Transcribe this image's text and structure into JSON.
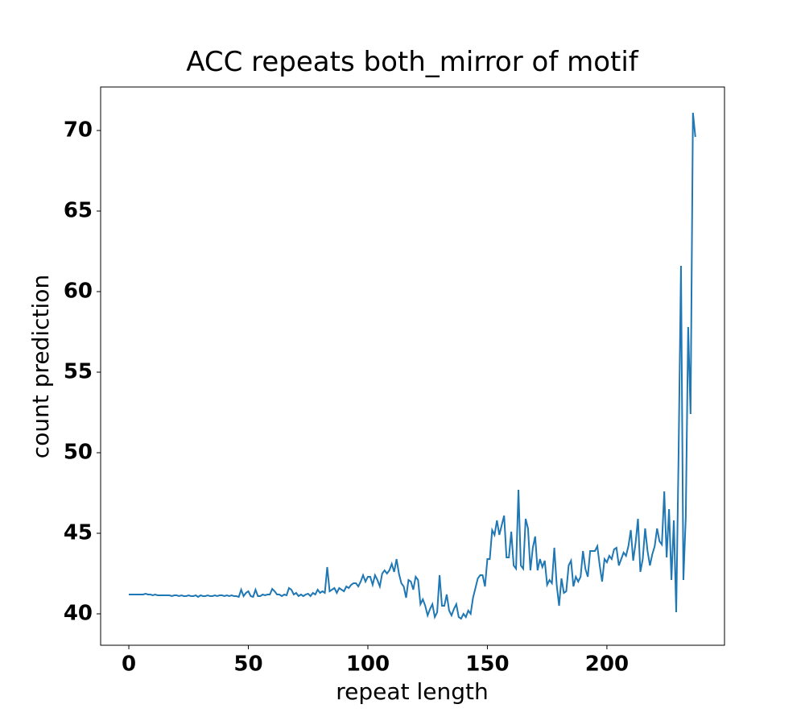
{
  "chart_data": {
    "type": "line",
    "title": "ACC repeats both_mirror of motif",
    "xlabel": "repeat length",
    "ylabel": "count prediction",
    "xlim": [
      -11.8,
      249.2
    ],
    "ylim": [
      38.05,
      72.7
    ],
    "xticks": [
      0,
      50,
      100,
      150,
      200
    ],
    "yticks": [
      40,
      45,
      50,
      55,
      60,
      65,
      70
    ],
    "series": [
      {
        "color": "#1f77b4",
        "x": [
          0,
          1,
          2,
          3,
          4,
          5,
          6,
          7,
          8,
          9,
          10,
          11,
          12,
          13,
          14,
          15,
          16,
          17,
          18,
          19,
          20,
          21,
          22,
          23,
          24,
          25,
          26,
          27,
          28,
          29,
          30,
          31,
          32,
          33,
          34,
          35,
          36,
          37,
          38,
          39,
          40,
          41,
          42,
          43,
          44,
          45,
          46,
          47,
          48,
          49,
          50,
          51,
          52,
          53,
          54,
          55,
          56,
          57,
          58,
          59,
          60,
          61,
          62,
          63,
          64,
          65,
          66,
          67,
          68,
          69,
          70,
          71,
          72,
          73,
          74,
          75,
          76,
          77,
          78,
          79,
          80,
          81,
          82,
          83,
          84,
          85,
          86,
          87,
          88,
          89,
          90,
          91,
          92,
          93,
          94,
          95,
          96,
          97,
          98,
          99,
          100,
          101,
          102,
          103,
          104,
          105,
          106,
          107,
          108,
          109,
          110,
          111,
          112,
          113,
          114,
          115,
          116,
          117,
          118,
          119,
          120,
          121,
          122,
          123,
          124,
          125,
          126,
          127,
          128,
          129,
          130,
          131,
          132,
          133,
          134,
          135,
          136,
          137,
          138,
          139,
          140,
          141,
          142,
          143,
          144,
          145,
          146,
          147,
          148,
          149,
          150,
          151,
          152,
          153,
          154,
          155,
          156,
          157,
          158,
          159,
          160,
          161,
          162,
          163,
          164,
          165,
          166,
          167,
          168,
          169,
          170,
          171,
          172,
          173,
          174,
          175,
          176,
          177,
          178,
          179,
          180,
          181,
          182,
          183,
          184,
          185,
          186,
          187,
          188,
          189,
          190,
          191,
          192,
          193,
          194,
          195,
          196,
          197,
          198,
          199,
          200,
          201,
          202,
          203,
          204,
          205,
          206,
          207,
          208,
          209,
          210,
          211,
          212,
          213,
          214,
          215,
          216,
          217,
          218,
          219,
          220,
          221,
          222,
          223,
          224,
          225,
          226,
          227,
          228,
          229,
          230,
          231,
          232,
          233,
          234,
          235,
          236,
          237
        ],
        "values": [
          41.2,
          41.2,
          41.2,
          41.2,
          41.2,
          41.2,
          41.2,
          41.25,
          41.2,
          41.2,
          41.15,
          41.2,
          41.15,
          41.15,
          41.15,
          41.15,
          41.15,
          41.15,
          41.1,
          41.15,
          41.15,
          41.1,
          41.15,
          41.1,
          41.1,
          41.15,
          41.1,
          41.1,
          41.15,
          41.05,
          41.15,
          41.1,
          41.1,
          41.15,
          41.1,
          41.1,
          41.15,
          41.1,
          41.15,
          41.15,
          41.1,
          41.15,
          41.1,
          41.15,
          41.1,
          41.1,
          41.05,
          41.5,
          41.1,
          41.3,
          41.4,
          41.1,
          41.05,
          41.5,
          41.1,
          41.1,
          41.2,
          41.15,
          41.2,
          41.2,
          41.55,
          41.4,
          41.2,
          41.2,
          41.1,
          41.2,
          41.15,
          41.6,
          41.5,
          41.2,
          41.3,
          41.1,
          41.2,
          41.1,
          41.2,
          41.25,
          41.1,
          41.3,
          41.2,
          41.5,
          41.3,
          41.4,
          41.3,
          42.9,
          41.4,
          41.5,
          41.6,
          41.3,
          41.6,
          41.5,
          41.4,
          41.7,
          41.6,
          41.8,
          41.9,
          41.9,
          41.7,
          42.0,
          42.4,
          42.0,
          42.3,
          42.3,
          41.8,
          42.4,
          42.1,
          41.7,
          42.5,
          42.7,
          42.5,
          42.7,
          43.1,
          42.6,
          43.4,
          42.5,
          41.9,
          41.7,
          41.0,
          42.1,
          42.0,
          41.5,
          42.3,
          42.1,
          40.6,
          40.9,
          40.5,
          39.9,
          40.3,
          40.6,
          39.8,
          40.1,
          42.4,
          40.5,
          40.5,
          41.2,
          40.2,
          39.9,
          40.3,
          40.6,
          39.8,
          39.7,
          40.0,
          39.8,
          40.2,
          40.0,
          41.0,
          41.6,
          42.2,
          42.4,
          42.4,
          41.7,
          43.4,
          43.4,
          45.2,
          44.9,
          45.8,
          44.9,
          45.5,
          46.1,
          43.5,
          43.5,
          45.1,
          43.0,
          42.8,
          47.7,
          43.0,
          42.8,
          45.9,
          45.3,
          42.7,
          44.1,
          44.8,
          42.7,
          43.4,
          42.9,
          43.3,
          41.8,
          42.1,
          41.9,
          44.1,
          41.8,
          40.5,
          42.2,
          41.3,
          41.4,
          43.0,
          43.3,
          41.7,
          42.3,
          42.0,
          42.3,
          43.9,
          42.8,
          42.3,
          43.9,
          43.9,
          43.9,
          44.2,
          43.0,
          42.0,
          43.4,
          43.2,
          43.6,
          43.4,
          44.0,
          44.1,
          43.0,
          43.4,
          43.8,
          43.6,
          44.2,
          45.2,
          43.3,
          44.4,
          45.9,
          42.6,
          43.4,
          45.3,
          43.9,
          43.0,
          43.7,
          44.2,
          45.3,
          44.5,
          44.3,
          47.6,
          43.5,
          46.5,
          42.1,
          45.8,
          40.1,
          50.0,
          61.6,
          42.1,
          46.0,
          57.8,
          52.4,
          71.1,
          69.6
        ]
      }
    ]
  }
}
